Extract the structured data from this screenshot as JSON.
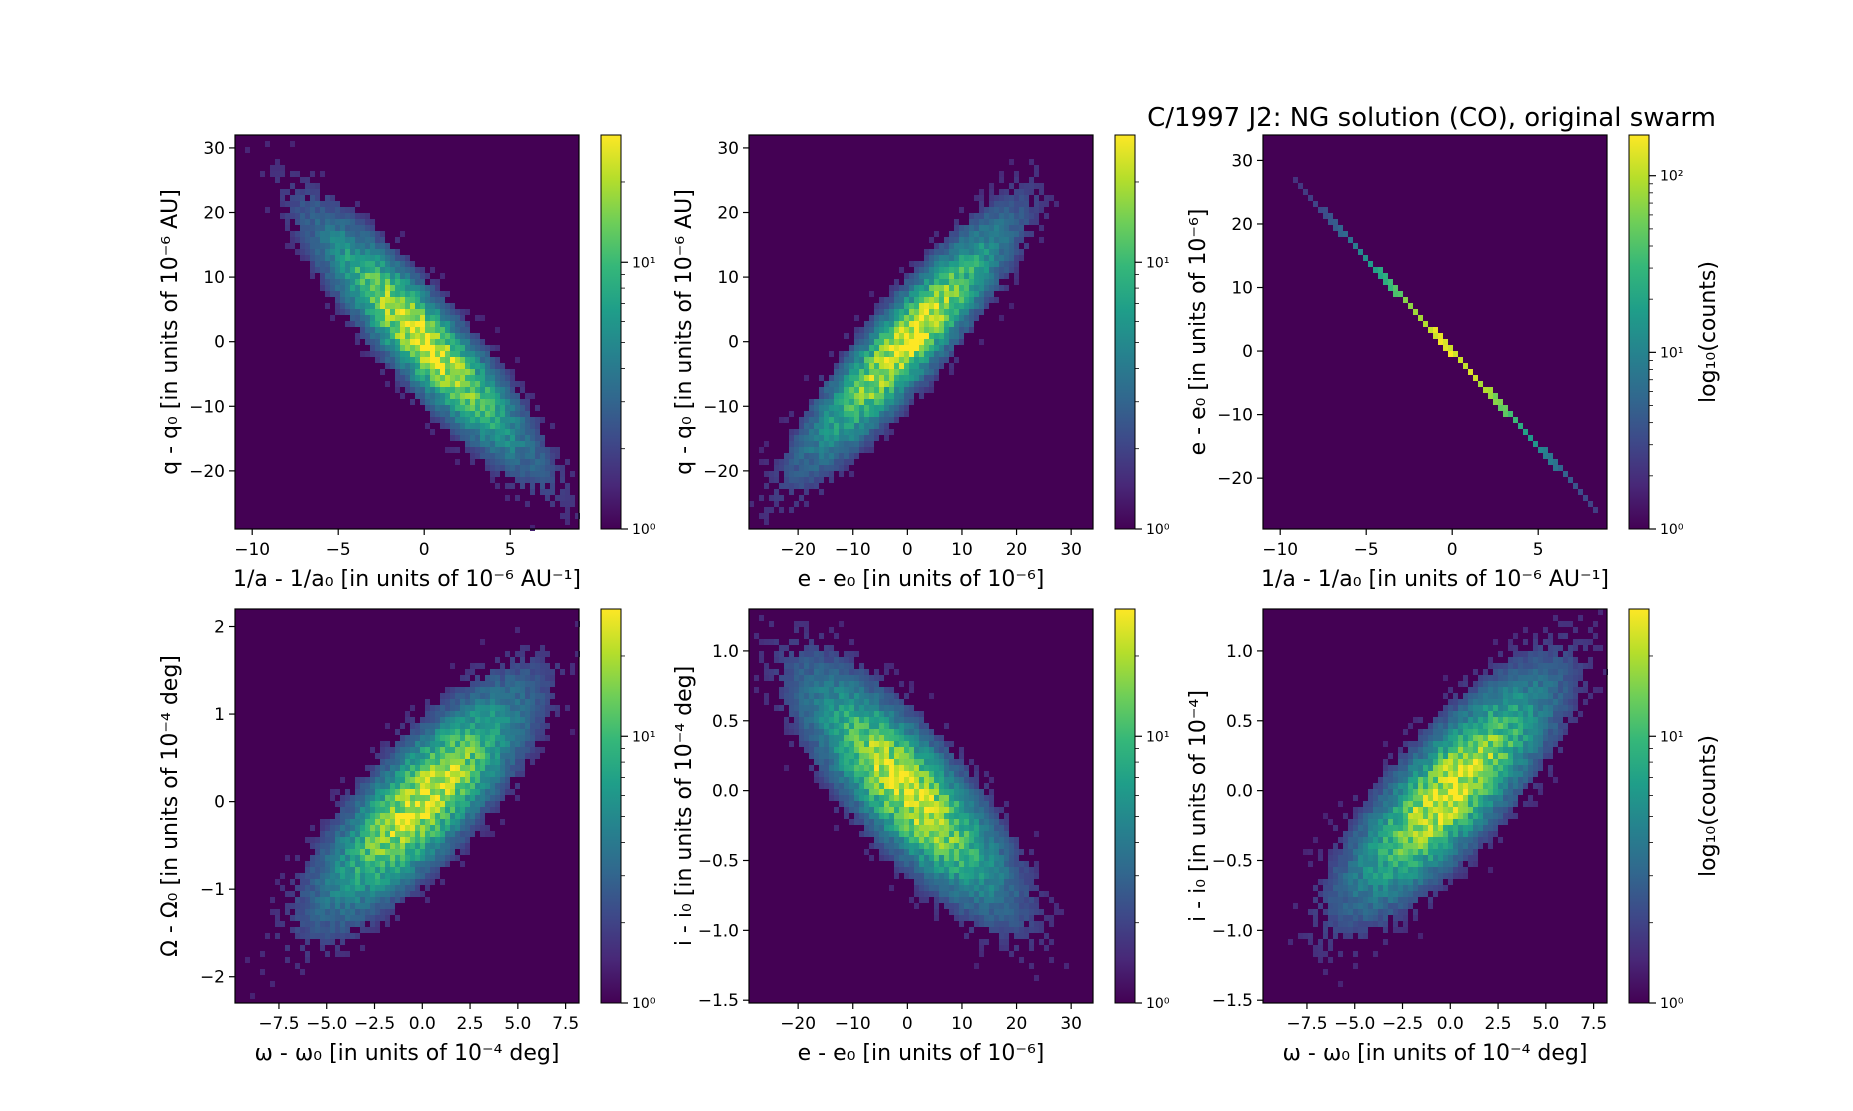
{
  "figure_title": "C/1997 J2:  NG solution (CO), original swarm",
  "colors": {
    "background": "#440154",
    "colormap": [
      "#440154",
      "#482878",
      "#3e4989",
      "#31688e",
      "#26828e",
      "#1f9e89",
      "#35b779",
      "#6ece58",
      "#b5de2b",
      "#fde725"
    ]
  },
  "chart_data": [
    {
      "type": "heatmap",
      "xlabel": "1/a - 1/a₀ [in units of 10⁻⁶ AU⁻¹]",
      "ylabel": "q - q₀ [in units of 10⁻⁶ AU]",
      "xlim": [
        -11,
        9
      ],
      "ylim": [
        -29,
        32
      ],
      "xticks": [
        -10,
        -5,
        0,
        5
      ],
      "yticks": [
        -20,
        -10,
        0,
        10,
        20,
        30
      ],
      "distribution": {
        "mean": [
          0,
          0
        ],
        "sd": [
          3.0,
          9.0
        ],
        "corr": -0.9
      },
      "colorbar": {
        "scale": "log",
        "min": 1,
        "max": 30,
        "ticks": [
          "10⁰",
          "10¹"
        ],
        "label": ""
      }
    },
    {
      "type": "heatmap",
      "xlabel": "e - e₀ [in units of 10⁻⁶]",
      "ylabel": "q - q₀ [in units of 10⁻⁶ AU]",
      "xlim": [
        -29,
        34
      ],
      "ylim": [
        -29,
        32
      ],
      "xticks": [
        -20,
        -10,
        0,
        10,
        20,
        30
      ],
      "yticks": [
        -20,
        -10,
        0,
        10,
        20,
        30
      ],
      "distribution": {
        "mean": [
          0,
          0
        ],
        "sd": [
          9.0,
          9.0
        ],
        "corr": 0.9
      },
      "colorbar": {
        "scale": "log",
        "min": 1,
        "max": 30,
        "ticks": [
          "10⁰",
          "10¹"
        ],
        "label": ""
      }
    },
    {
      "type": "heatmap",
      "xlabel": "1/a - 1/a₀ [in units of 10⁻⁶ AU⁻¹]",
      "ylabel": "e - e₀ [in units of 10⁻⁶]",
      "xlim": [
        -11,
        9
      ],
      "ylim": [
        -28,
        34
      ],
      "xticks": [
        -10,
        -5,
        0,
        5
      ],
      "yticks": [
        -20,
        -10,
        0,
        10,
        20,
        30
      ],
      "line": {
        "x_range": [
          -9.2,
          8.6
        ],
        "y_range": [
          27,
          -25.5
        ]
      },
      "distribution": {
        "mean": [
          0,
          0
        ],
        "sd": [
          3.0,
          9.0
        ],
        "corr": -1.0
      },
      "colorbar": {
        "scale": "log",
        "min": 1,
        "max": 170,
        "ticks": [
          "10⁰",
          "10¹",
          "10²"
        ],
        "label": "log₁₀(counts)"
      }
    },
    {
      "type": "heatmap",
      "xlabel": "ω - ω₀ [in units of 10⁻⁴ deg]",
      "ylabel": "Ω - Ω₀ [in units of 10⁻⁴ deg]",
      "xlim": [
        -9.8,
        8.2
      ],
      "ylim": [
        -2.3,
        2.2
      ],
      "xticks": [
        -7.5,
        -5.0,
        -2.5,
        0.0,
        2.5,
        5.0,
        7.5
      ],
      "yticks": [
        -2,
        -1,
        0,
        1,
        2
      ],
      "xticklabels": [
        "−7.5",
        "−5.0",
        "−2.5",
        "0.0",
        "2.5",
        "5.0",
        "7.5"
      ],
      "distribution": {
        "mean": [
          0,
          0
        ],
        "sd": [
          2.6,
          0.62
        ],
        "corr": 0.8
      },
      "colorbar": {
        "scale": "log",
        "min": 1,
        "max": 30,
        "ticks": [
          "10⁰",
          "10¹"
        ],
        "label": ""
      }
    },
    {
      "type": "heatmap",
      "xlabel": "e - e₀ [in units of 10⁻⁶]",
      "ylabel": "i - i₀ [in units of 10⁻⁴ deg]",
      "xlim": [
        -29,
        34
      ],
      "ylim": [
        -1.52,
        1.3
      ],
      "xticks": [
        -20,
        -10,
        0,
        10,
        20,
        30
      ],
      "yticks": [
        -1.5,
        -1.0,
        -0.5,
        0.0,
        0.5,
        1.0
      ],
      "yticklabels": [
        "−1.5",
        "−1.0",
        "−0.5",
        "0.0",
        "0.5",
        "1.0"
      ],
      "distribution": {
        "mean": [
          0,
          0
        ],
        "sd": [
          9.0,
          0.4
        ],
        "corr": -0.8
      },
      "colorbar": {
        "scale": "log",
        "min": 1,
        "max": 30,
        "ticks": [
          "10⁰",
          "10¹"
        ],
        "label": ""
      }
    },
    {
      "type": "heatmap",
      "xlabel": "ω - ω₀ [in units of 10⁻⁴ deg]",
      "ylabel": "i - i₀ [in units of 10⁻⁴]",
      "xlim": [
        -9.8,
        8.2
      ],
      "ylim": [
        -1.52,
        1.3
      ],
      "xticks": [
        -7.5,
        -5.0,
        -2.5,
        0.0,
        2.5,
        5.0,
        7.5
      ],
      "yticks": [
        -1.5,
        -1.0,
        -0.5,
        0.0,
        0.5,
        1.0
      ],
      "xticklabels": [
        "−7.5",
        "−5.0",
        "−2.5",
        "0.0",
        "2.5",
        "5.0",
        "7.5"
      ],
      "yticklabels": [
        "−1.5",
        "−1.0",
        "−0.5",
        "0.0",
        "0.5",
        "1.0"
      ],
      "distribution": {
        "mean": [
          0,
          0
        ],
        "sd": [
          2.6,
          0.4
        ],
        "corr": 0.8
      },
      "colorbar": {
        "scale": "log",
        "min": 1,
        "max": 30,
        "ticks": [
          "10⁰",
          "10¹"
        ],
        "label": "log₁₀(counts)"
      }
    }
  ]
}
